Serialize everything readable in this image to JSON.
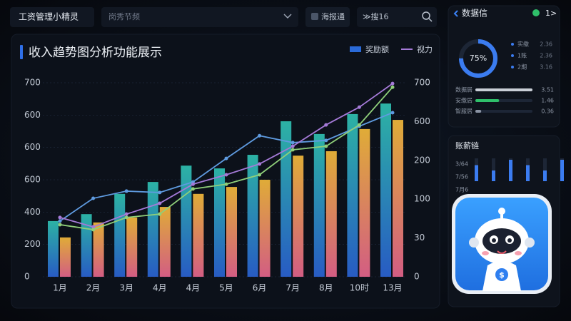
{
  "header": {
    "app_title": "工资管理小精灵",
    "search_placeholder": "岗秀节频",
    "button": "海报通",
    "search2": "≫搜16"
  },
  "chart_data": {
    "type": "bar",
    "title": "收入趋势图分析功能展示",
    "categories": [
      "1月",
      "2月",
      "3月",
      "4月",
      "4月",
      "5月",
      "6月",
      "7月",
      "8月",
      "10时",
      "13月"
    ],
    "series": [
      {
        "name": "奖励额",
        "type": "bar",
        "color": "#2a6ad8",
        "gradient": [
          "#2fc0b0",
          "#2a62d2"
        ],
        "values": [
          201,
          226,
          299,
          342,
          401,
          391,
          440,
          561,
          515,
          587,
          625
        ]
      },
      {
        "type": "bar",
        "color": "#f0b53a",
        "gradient": [
          "#f2b93a",
          "#e4648c"
        ],
        "values": [
          142,
          196,
          214,
          252,
          299,
          324,
          350,
          437,
          453,
          533,
          566
        ]
      },
      {
        "type": "line",
        "color": "#5f9be0",
        "values": [
          201,
          283,
          309,
          304,
          342,
          427,
          509,
          484,
          492,
          543,
          592
        ]
      },
      {
        "name": "视力",
        "type": "line",
        "color": "#a57ad8",
        "values": [
          214,
          180,
          226,
          265,
          334,
          368,
          407,
          471,
          548,
          612,
          697
        ]
      },
      {
        "type": "line",
        "color": "#8fcf7a",
        "values": [
          188,
          170,
          214,
          226,
          317,
          334,
          368,
          458,
          471,
          548,
          684
        ]
      }
    ],
    "ylim": [
      0,
      700
    ],
    "yticks": [
      0,
      {
        "value": 117,
        "label": "200"
      },
      {
        "value": 233,
        "label": "400"
      },
      {
        "value": 350,
        "label": "600"
      },
      {
        "value": 467,
        "label": "600"
      },
      {
        "value": 583,
        "label": "600"
      },
      700
    ],
    "y2lim": [
      0,
      700
    ],
    "y2ticks": [
      0,
      {
        "value": 140,
        "label": "30"
      },
      {
        "value": 280,
        "label": "100"
      },
      {
        "value": 420,
        "label": "200"
      },
      {
        "value": 560,
        "label": "600"
      },
      700
    ],
    "grid": true
  },
  "side": {
    "title": "数据信",
    "badge": "1>",
    "donut": {
      "value": 75,
      "value_label": "75%"
    },
    "items": [
      {
        "label": "实缴",
        "value": 2.36
      },
      {
        "label": "1账",
        "value": 2.36
      },
      {
        "label": "2期",
        "value": 3.16
      }
    ],
    "stats": [
      {
        "label": "数据居",
        "value": 3.51,
        "color": "#c9ced6"
      },
      {
        "label": "安缴居",
        "value": 1.46,
        "color": "#2fbf6a"
      },
      {
        "label": "智服居",
        "value": 0.36,
        "color": "#8a93a3"
      }
    ]
  },
  "side2": {
    "title": "账薪链",
    "labels": [
      "3/64",
      "7/56",
      "7月6"
    ],
    "values": [
      3,
      2,
      4,
      3,
      2,
      4
    ]
  }
}
